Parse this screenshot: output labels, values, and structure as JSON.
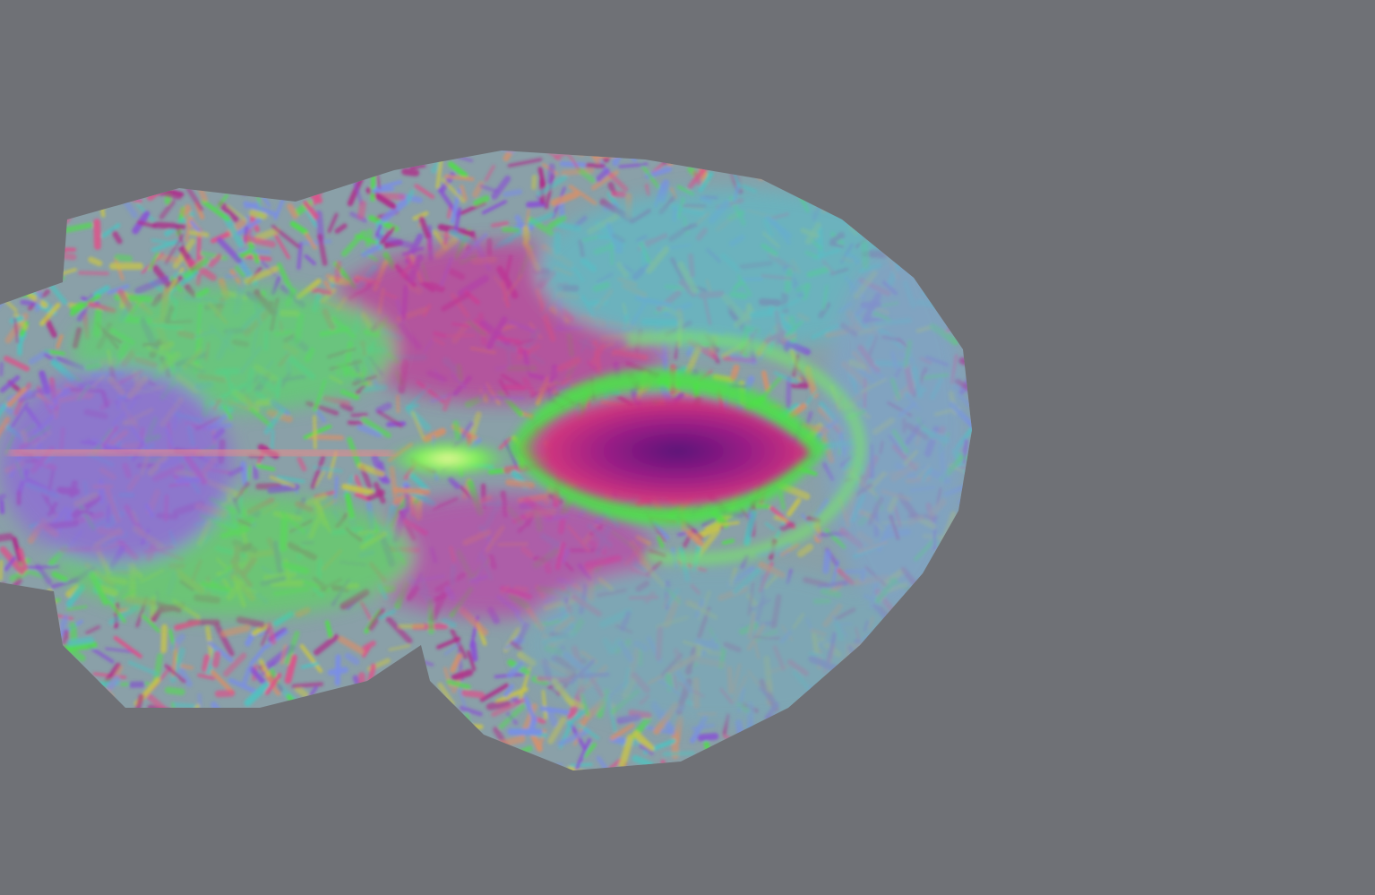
{
  "scene": {
    "background_color": "#6f7176",
    "subject": "tractography-volume-render",
    "palette": {
      "red": "#e0508a",
      "magenta": "#b02a8a",
      "violet": "#8a4fd6",
      "blue": "#7a8ee8",
      "green": "#4ee048",
      "cyan": "#4fc2c0",
      "yellow": "#c8c44a",
      "orange": "#d8906a"
    }
  }
}
